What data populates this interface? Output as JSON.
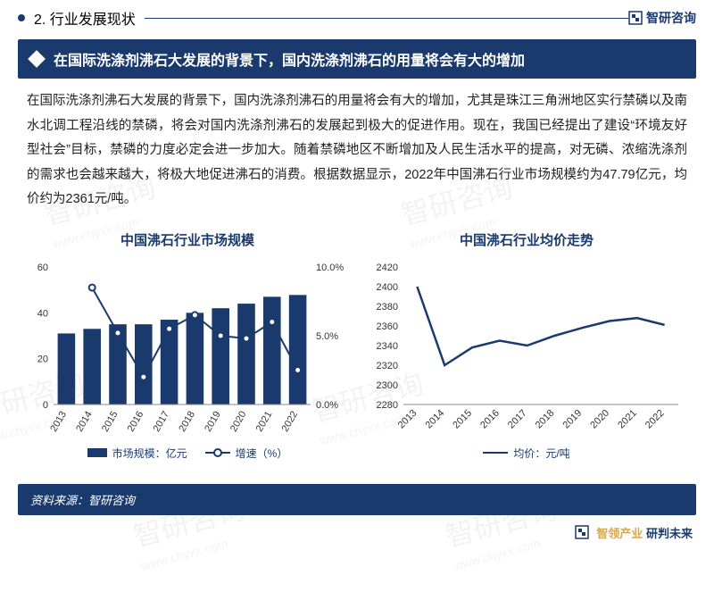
{
  "colors": {
    "primary": "#1a3a6e",
    "accent": "#d4a94e",
    "text": "#222222",
    "axis": "#333333",
    "white": "#ffffff"
  },
  "header": {
    "section_label": "2. 行业发展现状",
    "brand": "智研咨询"
  },
  "banner": {
    "text": "在国际洗涤剂沸石大发展的背景下，国内洗涤剂沸石的用量将会有大的增加"
  },
  "body": {
    "paragraph": "在国际洗涤剂沸石大发展的背景下，国内洗涤剂沸石的用量将会有大的增加，尤其是珠江三角洲地区实行禁磷以及南水北调工程沿线的禁磷，将会对国内洗涤剂沸石的发展起到极大的促进作用。现在，我国已经提出了建设“环境友好型社会”目标，禁磷的力度必定会进一步加大。随着禁磷地区不断增加及人民生活水平的提高，对无磷、浓缩洗涤剂的需求也会越来越大，将极大地促进沸石的消费。根据数据显示，2022年中国沸石行业市场规模约为47.79亿元，均价约为2361元/吨。"
  },
  "chart1": {
    "type": "bar+line",
    "title": "中国沸石行业市场规模",
    "categories": [
      "2013",
      "2014",
      "2015",
      "2016",
      "2017",
      "2018",
      "2019",
      "2020",
      "2021",
      "2022"
    ],
    "bar_values": [
      31,
      33,
      35,
      35,
      37,
      40,
      42,
      44,
      47,
      47.79
    ],
    "line_values": [
      null,
      8.5,
      5.2,
      2.0,
      5.5,
      6.5,
      5.0,
      4.8,
      6.0,
      2.5
    ],
    "y_left": {
      "min": 0,
      "max": 60,
      "step": 20
    },
    "y_right": {
      "min": 0,
      "max": 10,
      "step": 5,
      "suffix": "%"
    },
    "bar_color": "#1a3a6e",
    "line_color": "#1a3a6e",
    "legend": [
      {
        "type": "bar",
        "label": "市场规模：亿元"
      },
      {
        "type": "line",
        "label": "增速（%）"
      }
    ]
  },
  "chart2": {
    "type": "line",
    "title": "中国沸石行业均价走势",
    "categories": [
      "2013",
      "2014",
      "2015",
      "2016",
      "2017",
      "2018",
      "2019",
      "2020",
      "2021",
      "2022"
    ],
    "values": [
      2400,
      2320,
      2338,
      2345,
      2340,
      2350,
      2358,
      2365,
      2368,
      2361
    ],
    "y": {
      "min": 2280,
      "max": 2420,
      "step": 20
    },
    "line_color": "#1a3a6e",
    "legend": [
      {
        "type": "line2",
        "label": "均价：元/吨"
      }
    ]
  },
  "source": {
    "label": "资料来源：智研咨询"
  },
  "footer": {
    "tagline_a": "智领产业",
    "tagline_b": "研判未来"
  },
  "watermark": {
    "main": "智研咨询",
    "sub": "www.chyxx.com"
  }
}
